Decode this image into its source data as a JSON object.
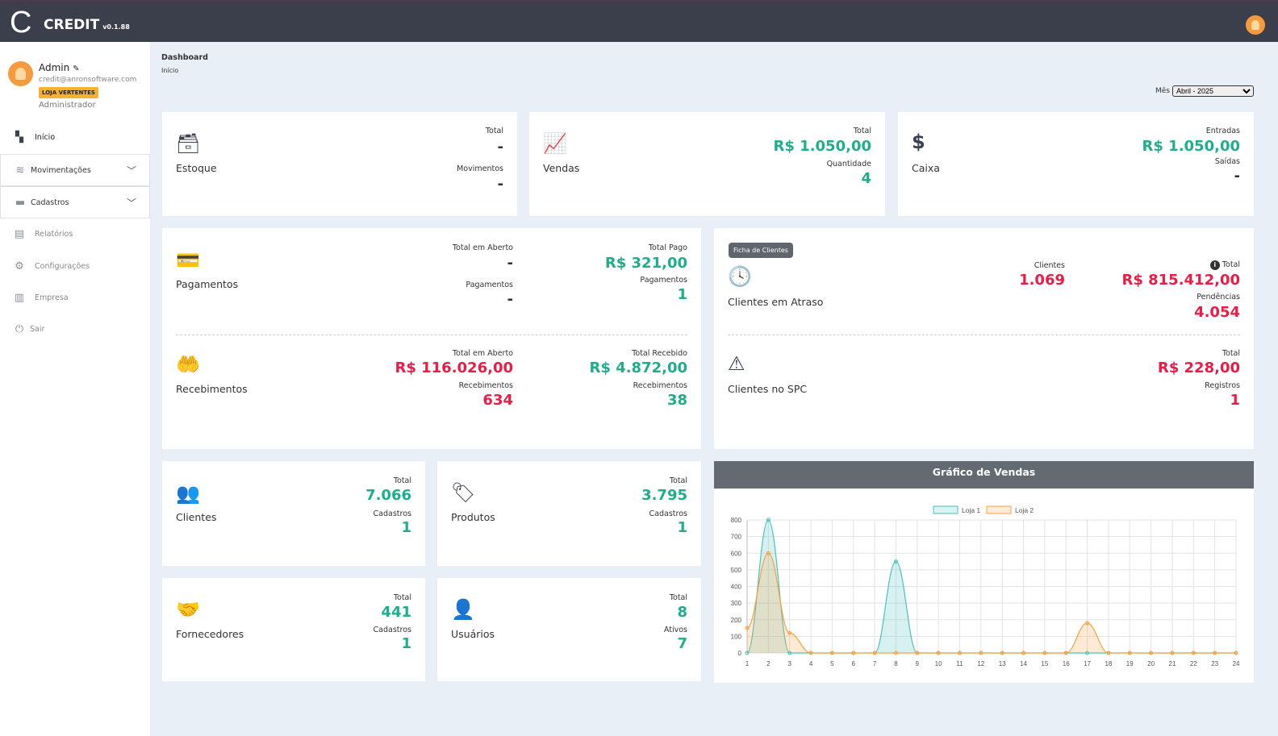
{
  "app": {
    "logo_letter": "C",
    "name": "CREDIT",
    "version": "v0.1.88"
  },
  "user": {
    "name": "Admin",
    "email": "credit@anronsoftware.com",
    "store_badge": "LOJA VERTENTES",
    "role": "Administrador"
  },
  "sidebar": {
    "items": [
      {
        "label": "Início",
        "icon": "dashboard-icon"
      },
      {
        "label": "Movimentações",
        "icon": "database-icon"
      },
      {
        "label": "Cadastros",
        "icon": "archive-icon"
      },
      {
        "label": "Relatórios",
        "icon": "clipboard-list-icon"
      },
      {
        "label": "Configurações",
        "icon": "gear-icon"
      },
      {
        "label": "Empresa",
        "icon": "building-icon"
      },
      {
        "label": "Sair",
        "icon": "power-icon"
      }
    ]
  },
  "breadcrumb": {
    "title": "Dashboard",
    "sub": "Início"
  },
  "filter": {
    "label": "Mês",
    "value": "Abril - 2025"
  },
  "cards": {
    "estoque": {
      "title": "Estoque",
      "l1": "Total",
      "v1": "-",
      "l2": "Movimentos",
      "v2": "-"
    },
    "vendas": {
      "title": "Vendas",
      "l1": "Total",
      "v1": "R$ 1.050,00",
      "l2": "Quantidade",
      "v2": "4"
    },
    "caixa": {
      "title": "Caixa",
      "l1": "Entradas",
      "v1": "R$ 1.050,00",
      "l2": "Saídas",
      "v2": "-"
    },
    "pagamentos": {
      "title": "Pagamentos",
      "a_l1": "Total em Aberto",
      "a_v1": "-",
      "a_l2": "Pagamentos",
      "a_v2": "-",
      "b_l1": "Total Pago",
      "b_v1": "R$ 321,00",
      "b_l2": "Pagamentos",
      "b_v2": "1"
    },
    "recebimentos": {
      "title": "Recebimentos",
      "a_l1": "Total em Aberto",
      "a_v1": "R$ 116.026,00",
      "a_l2": "Recebimentos",
      "a_v2": "634",
      "b_l1": "Total Recebido",
      "b_v1": "R$ 4.872,00",
      "b_l2": "Recebimentos",
      "b_v2": "38"
    },
    "atraso": {
      "button": "Ficha de Clientes",
      "title": "Clientes em Atraso",
      "a_l1": "Clientes",
      "a_v1": "1.069",
      "b_l1": "Total",
      "b_v1": "R$ 815.412,00",
      "b_l2": "Pendências",
      "b_v2": "4.054"
    },
    "spc": {
      "title": "Clientes no SPC",
      "l1": "Total",
      "v1": "R$ 228,00",
      "l2": "Registros",
      "v2": "1"
    },
    "clientes": {
      "title": "Clientes",
      "l1": "Total",
      "v1": "7.066",
      "l2": "Cadastros",
      "v2": "1"
    },
    "produtos": {
      "title": "Produtos",
      "l1": "Total",
      "v1": "3.795",
      "l2": "Cadastros",
      "v2": "1"
    },
    "fornecedores": {
      "title": "Fornecedores",
      "l1": "Total",
      "v1": "441",
      "l2": "Cadastros",
      "v2": "1"
    },
    "usuarios": {
      "title": "Usuários",
      "l1": "Total",
      "v1": "8",
      "l2": "Ativos",
      "v2": "7"
    }
  },
  "colors": {
    "header": "#3a3f4b",
    "positive": "#1fae8c",
    "negative": "#ea1d45",
    "badge": "#f6b22c"
  },
  "chart_data": {
    "type": "area",
    "title": "Gráfico de Vendas",
    "legend": "top",
    "grid": true,
    "x": [
      1,
      2,
      3,
      4,
      5,
      6,
      7,
      8,
      9,
      10,
      11,
      12,
      13,
      14,
      15,
      16,
      17,
      18,
      19,
      20,
      21,
      22,
      23,
      24
    ],
    "ylim": [
      0,
      800
    ],
    "yticks": [
      0,
      100,
      200,
      300,
      400,
      500,
      600,
      700,
      800
    ],
    "series": [
      {
        "name": "Loja 1",
        "color": "#4bc0c0",
        "values": [
          0,
          800,
          0,
          0,
          0,
          0,
          0,
          550,
          0,
          0,
          0,
          0,
          0,
          0,
          0,
          0,
          0,
          0,
          0,
          0,
          0,
          0,
          0,
          0
        ]
      },
      {
        "name": "Loja 2",
        "color": "#ff9f40",
        "values": [
          150,
          600,
          120,
          0,
          0,
          0,
          0,
          0,
          0,
          0,
          0,
          0,
          0,
          0,
          0,
          0,
          180,
          0,
          0,
          0,
          0,
          0,
          0,
          0
        ]
      }
    ]
  }
}
